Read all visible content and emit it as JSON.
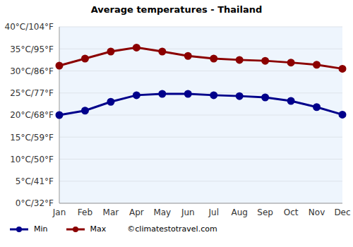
{
  "chart_data": {
    "type": "line",
    "title": "Average temperatures - Thailand",
    "categories": [
      "Jan",
      "Feb",
      "Mar",
      "Apr",
      "May",
      "Jun",
      "Jul",
      "Aug",
      "Sep",
      "Oct",
      "Nov",
      "Dec"
    ],
    "series": [
      {
        "name": "Min",
        "color": "#00008b",
        "marker": "circle",
        "line_style": "solid",
        "values": [
          20,
          21,
          23,
          24.5,
          24.8,
          24.8,
          24.5,
          24.3,
          24,
          23.2,
          21.8,
          20.1
        ]
      },
      {
        "name": "Max",
        "color": "#8b0000",
        "marker": "circle",
        "line_style": "solid",
        "values": [
          31.2,
          32.8,
          34.4,
          35.3,
          34.4,
          33.4,
          32.8,
          32.5,
          32.3,
          31.9,
          31.4,
          30.5
        ]
      }
    ],
    "ylim": [
      0,
      40
    ],
    "yticks": [
      {
        "value": 0,
        "label": "0°C/32°F"
      },
      {
        "value": 5,
        "label": "5°C/41°F"
      },
      {
        "value": 10,
        "label": "10°C/50°F"
      },
      {
        "value": 15,
        "label": "15°C/59°F"
      },
      {
        "value": 20,
        "label": "20°C/68°F"
      },
      {
        "value": 25,
        "label": "25°C/77°F"
      },
      {
        "value": 30,
        "label": "30°C/86°F"
      },
      {
        "value": 35,
        "label": "35°C/95°F"
      },
      {
        "value": 40,
        "label": "40°C/104°F"
      }
    ],
    "grid": true,
    "legend": "bottom left",
    "annotations": [
      "©climatestotravel.com"
    ]
  }
}
